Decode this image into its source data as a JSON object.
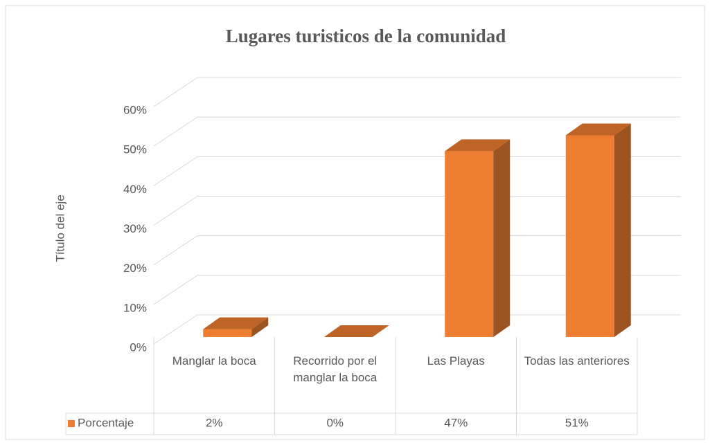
{
  "chart_data": {
    "type": "bar3d",
    "title": "Lugares turisticos de la comunidad",
    "y_axis_title": "Título del eje",
    "categories": [
      "Manglar la boca",
      "Recorrido por el manglar la boca",
      "Las Playas",
      "Todas las anteriores"
    ],
    "series": [
      {
        "name": "Porcentaje",
        "color": "#ed7d31",
        "values": [
          2,
          0,
          47,
          51
        ],
        "value_labels": [
          "2%",
          "0%",
          "47%",
          "51%"
        ]
      }
    ],
    "ylim": [
      0,
      60
    ],
    "yticks": [
      {
        "value": 0,
        "label": "0%"
      },
      {
        "value": 10,
        "label": "10%"
      },
      {
        "value": 20,
        "label": "20%"
      },
      {
        "value": 30,
        "label": "30%"
      },
      {
        "value": 40,
        "label": "40%"
      },
      {
        "value": 50,
        "label": "50%"
      },
      {
        "value": 60,
        "label": "60%"
      }
    ],
    "grid": true,
    "data_table": true
  }
}
